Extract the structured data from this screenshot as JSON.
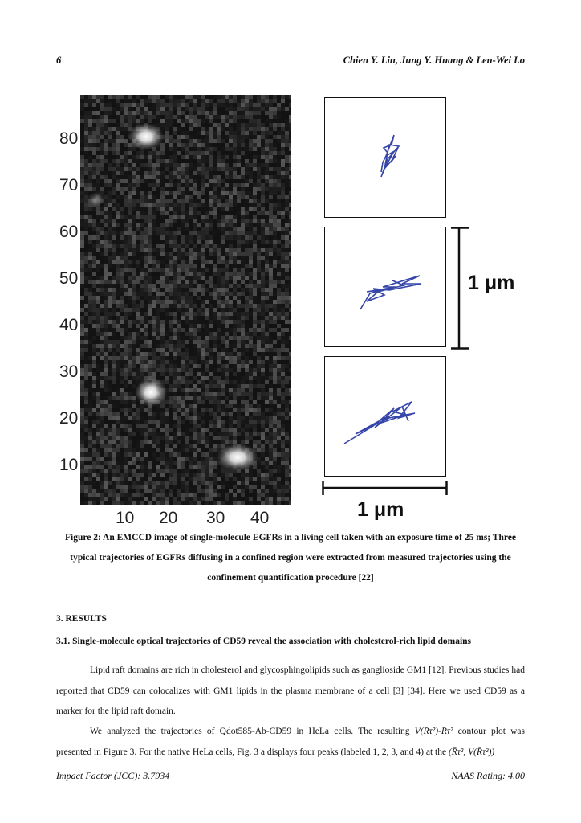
{
  "header": {
    "page_number": "6",
    "authors": "Chien Y. Lin, Jung Y. Huang & Leu-Wei Lo"
  },
  "figure": {
    "micro_y_ticks": [
      "80",
      "70",
      "60",
      "50",
      "40",
      "30",
      "20",
      "10"
    ],
    "micro_x_ticks": [
      "10",
      "20",
      "30",
      "40"
    ],
    "scale_label": "1 μm",
    "caption": "Figure 2: An EMCCD image of single-molecule EGFRs in a living cell taken with an exposure time of 25 ms; Three typical trajectories of EGFRs diffusing in a confined region were extracted from measured trajectories using the confinement quantification procedure [22]"
  },
  "section": {
    "heading": "3.  RESULTS"
  },
  "subsection": {
    "heading": "3.1.  Single-molecule optical trajectories of CD59 reveal the association with cholesterol-rich lipid domains"
  },
  "paragraphs": {
    "p1": "Lipid raft domains are rich in cholesterol and glycosphingolipids such as ganglioside GM1 [12]. Previous studies had reported that CD59 can colocalizes with GM1 lipids in the plasma membrane of a cell [3] [34]. Here we used CD59 as a marker for the lipid raft domain.",
    "p2_a": "We analyzed the trajectories of Qdot585-Ab-CD59 in HeLa cells. The resulting ",
    "p2_m1": "V(R̄τ²)-R̄τ²",
    "p2_b": " contour plot was presented in Figure 3. For the native HeLa cells, Fig. 3 a displays four peaks (labeled 1, 2, 3, and 4) at the ",
    "p2_m2": "(R̄τ², V(R̄τ²))"
  },
  "footer": {
    "impact": "Impact Factor (JCC): 3.7934",
    "rating": "NAAS Rating: 4.00"
  },
  "colors": {
    "trajectory": "#3545a8",
    "micrograph_bg": "#141414"
  }
}
